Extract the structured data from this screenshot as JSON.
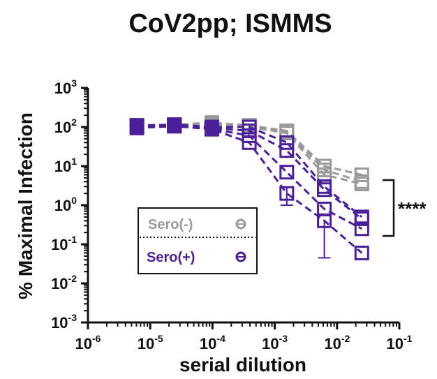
{
  "chart_data": {
    "type": "line",
    "title": "CoV2pp; ISMMS",
    "xlabel": "serial dilution",
    "ylabel": "% Maximal Infection",
    "x_scale": "log",
    "y_scale": "log",
    "xlim": [
      1e-06,
      0.1
    ],
    "ylim": [
      0.001,
      1000
    ],
    "x_ticks": [
      {
        "base": "10",
        "exp": "-6"
      },
      {
        "base": "10",
        "exp": "-5"
      },
      {
        "base": "10",
        "exp": "-4"
      },
      {
        "base": "10",
        "exp": "-3"
      },
      {
        "base": "10",
        "exp": "-2"
      },
      {
        "base": "10",
        "exp": "-1"
      }
    ],
    "y_ticks": [
      {
        "base": "10",
        "exp": "3"
      },
      {
        "base": "10",
        "exp": "2"
      },
      {
        "base": "10",
        "exp": "1"
      },
      {
        "base": "10",
        "exp": "0"
      },
      {
        "base": "10",
        "exp": "-1"
      },
      {
        "base": "10",
        "exp": "-2"
      },
      {
        "base": "10",
        "exp": "-3"
      }
    ],
    "x": [
      6.1e-06,
      2.44e-05,
      9.77e-05,
      0.00039,
      0.00156,
      0.00625,
      0.025
    ],
    "groups": [
      {
        "name": "Sero(-)",
        "color": "#9a9a9a",
        "series": [
          {
            "values": [
              110,
              115,
              130,
              110,
              80,
              10,
              6
            ]
          },
          {
            "values": [
              105,
              112,
              120,
              105,
              75,
              8,
              4
            ]
          },
          {
            "values": [
              100,
              108,
              110,
              100,
              70,
              6,
              3.5
            ]
          }
        ]
      },
      {
        "name": "Sero(+)",
        "color": "#4b1e9a",
        "series": [
          {
            "values": [
              110,
              115,
              100,
              100,
              40,
              3,
              0.5
            ]
          },
          {
            "values": [
              105,
              112,
              95,
              80,
              25,
              2.5,
              0.45
            ]
          },
          {
            "values": [
              100,
              108,
              90,
              60,
              7,
              0.8,
              0.25
            ]
          },
          {
            "values": [
              95,
              105,
              88,
              40,
              2,
              0.4,
              0.06
            ]
          }
        ]
      }
    ],
    "error_bars": [
      {
        "group": "Sero(+)",
        "x": 0.00156,
        "low": 1.0,
        "high": 3.0
      },
      {
        "group": "Sero(+)",
        "x": 0.00625,
        "low": 0.045,
        "high": 0.4
      }
    ],
    "legend": {
      "placement": "bottom-left",
      "entries": [
        "Sero(-)",
        "Sero(+)"
      ]
    },
    "annotation": "****"
  }
}
